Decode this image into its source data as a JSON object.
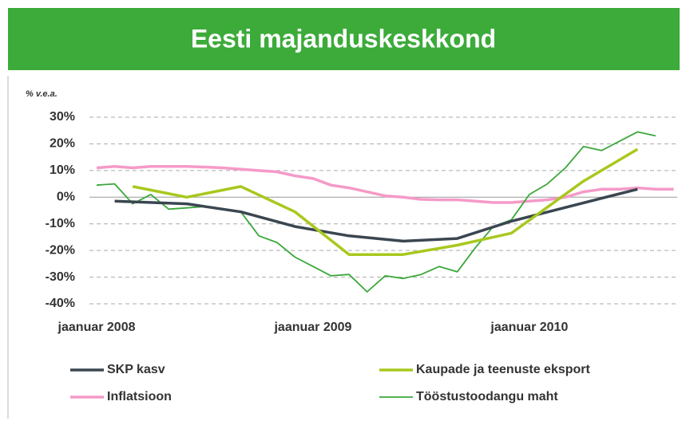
{
  "chart_data": {
    "type": "line",
    "title": "Eesti majanduskeskkond",
    "y_label": "% v.e.a.",
    "xlim": [
      -0.4,
      32.2
    ],
    "xticks": [
      {
        "value": 0,
        "label": "jaanuar 2008"
      },
      {
        "value": 12,
        "label": "jaanuar 2009"
      },
      {
        "value": 24,
        "label": "jaanuar 2010"
      }
    ],
    "ylim": [
      -40,
      30
    ],
    "yticks": [
      {
        "value": 30,
        "label": "30%"
      },
      {
        "value": 20,
        "label": "20%"
      },
      {
        "value": 10,
        "label": "10%"
      },
      {
        "value": 0,
        "label": "0%"
      },
      {
        "value": -10,
        "label": "-10%"
      },
      {
        "value": -20,
        "label": "-20%"
      },
      {
        "value": -30,
        "label": "-30%"
      },
      {
        "value": -40,
        "label": "-40%"
      }
    ],
    "grid": true,
    "series": [
      {
        "name": "SKP kasv",
        "color": "#3a4650",
        "width": 3.5,
        "x": [
          1,
          5,
          8,
          11,
          14,
          17,
          20,
          23,
          26.5,
          30
        ],
        "values": [
          -1.5,
          -2.5,
          -5.5,
          -11,
          -14.5,
          -16.5,
          -15.5,
          -9,
          -3,
          3
        ]
      },
      {
        "name": "Kaupade ja teenuste eksport",
        "color": "#a8c81e",
        "width": 3.5,
        "x": [
          2,
          5,
          8,
          11,
          14,
          17,
          20,
          23,
          27,
          30
        ],
        "values": [
          4,
          0,
          4,
          -5.5,
          -21.5,
          -21.5,
          -18,
          -13.5,
          6,
          18
        ]
      },
      {
        "name": "Inflatsioon",
        "color": "#f59ac8",
        "width": 3.5,
        "x": [
          0,
          1,
          2,
          3,
          4,
          5,
          6,
          7,
          8,
          9,
          10,
          11,
          12,
          13,
          14,
          15,
          16,
          17,
          18,
          19,
          20,
          21,
          22,
          23,
          24,
          25,
          26,
          27,
          28,
          29,
          30,
          31,
          32
        ],
        "values": [
          11,
          11.5,
          11,
          11.5,
          11.5,
          11.5,
          11.3,
          11,
          10.5,
          10,
          9.5,
          8,
          7,
          4.5,
          3.5,
          2,
          0.5,
          0,
          -0.8,
          -1,
          -1,
          -1.5,
          -2,
          -2,
          -1.5,
          -1,
          0,
          2,
          3,
          3,
          3.5,
          3,
          3
        ]
      },
      {
        "name": "Tööstustoodangu maht",
        "color": "#3aa83a",
        "width": 1.8,
        "x": [
          0,
          1,
          2,
          3,
          4,
          5,
          6,
          7,
          8,
          9,
          10,
          11,
          12,
          13,
          14,
          15,
          16,
          17,
          18,
          19,
          20,
          21,
          22,
          23,
          24,
          25,
          26,
          27,
          28,
          29,
          30,
          31
        ],
        "values": [
          4.5,
          5,
          -2.5,
          1,
          -4.5,
          -4,
          -3.5,
          -4.5,
          -5.5,
          -14.5,
          -17,
          -22.5,
          -26,
          -29.5,
          -29,
          -35.5,
          -29.5,
          -30.5,
          -29,
          -26,
          -28,
          -19,
          -11,
          -8.5,
          1,
          5,
          11,
          19,
          17.5,
          21,
          24.5,
          23
        ]
      }
    ]
  }
}
